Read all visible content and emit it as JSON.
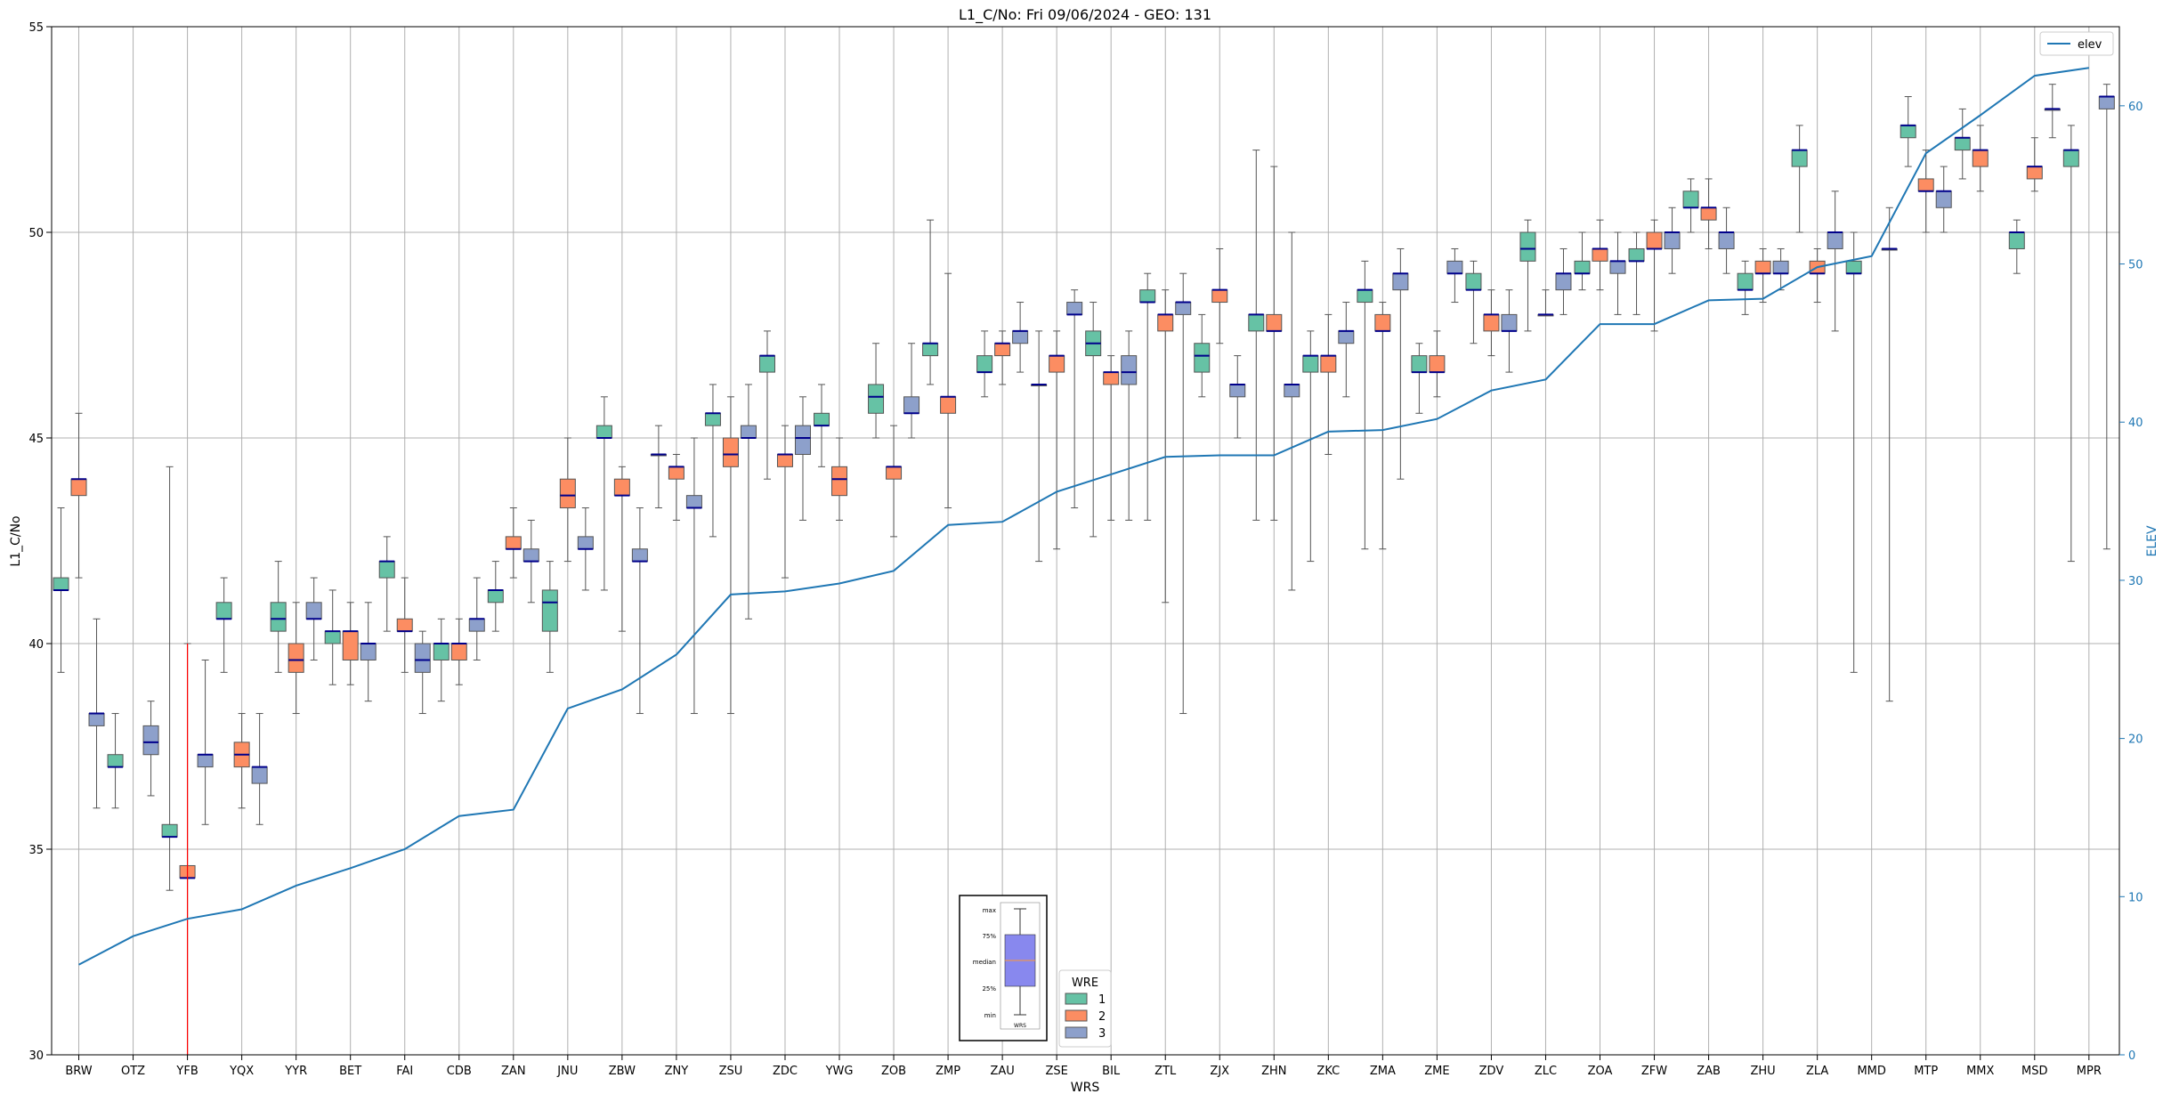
{
  "chart_data": {
    "type": "boxplot",
    "title": "L1_C/No: Fri 09/06/2024 - GEO: 131",
    "xlabel": "WRS",
    "ylabel": "L1_C/No",
    "y2label": "ELEV",
    "ylim": [
      30,
      55
    ],
    "y2lim": [
      0,
      65
    ],
    "yticks": [
      30,
      35,
      40,
      45,
      50,
      55
    ],
    "y2ticks": [
      0,
      10,
      20,
      30,
      40,
      50,
      60
    ],
    "grid": true,
    "categories": [
      "BRW",
      "OTZ",
      "YFB",
      "YQX",
      "YYR",
      "BET",
      "FAI",
      "CDB",
      "ZAN",
      "JNU",
      "ZBW",
      "ZNY",
      "ZSU",
      "ZDC",
      "YWG",
      "ZOB",
      "ZMP",
      "ZAU",
      "ZSE",
      "BIL",
      "ZTL",
      "ZJX",
      "ZHN",
      "ZKC",
      "ZMA",
      "ZME",
      "ZDV",
      "ZLC",
      "ZOA",
      "ZFW",
      "ZAB",
      "ZHU",
      "ZLA",
      "MMD",
      "MTP",
      "MMX",
      "MSD",
      "MPR"
    ],
    "legend": {
      "line": {
        "label": "elev",
        "position": "top-right"
      },
      "boxes": {
        "title": "WRE",
        "entries": [
          "1",
          "2",
          "3"
        ],
        "position": "bottom-center"
      }
    },
    "colors": {
      "wre1": "#66c2a5",
      "wre2": "#fc8d62",
      "wre3": "#8da0cb",
      "median": "#00008b",
      "elev": "#1f77b4",
      "axis2": "#1f77b4",
      "marker": "#ff0000"
    },
    "marker_line": {
      "category": "YFB",
      "from": 30,
      "to": 40
    },
    "elev": [
      5.7,
      7.5,
      8.6,
      9.2,
      10.7,
      11.8,
      13.0,
      15.1,
      15.5,
      21.9,
      23.1,
      25.3,
      29.1,
      29.3,
      29.8,
      30.6,
      33.5,
      33.7,
      35.6,
      36.7,
      37.8,
      37.9,
      37.9,
      39.4,
      39.5,
      40.2,
      42.0,
      42.7,
      46.2,
      46.2,
      47.7,
      47.8,
      49.8,
      50.5,
      57.0,
      59.4,
      61.9,
      62.4
    ],
    "series": [
      {
        "name": "1",
        "boxes": [
          [
            0,
            39.3,
            41.3,
            41.3,
            41.6,
            43.3
          ],
          [
            1,
            36.0,
            37.0,
            37.0,
            37.3,
            38.3
          ],
          [
            2,
            34.0,
            35.3,
            35.3,
            35.6,
            44.3
          ],
          [
            3,
            39.3,
            40.6,
            40.6,
            41.0,
            41.6
          ],
          [
            4,
            39.3,
            40.3,
            40.6,
            41.0,
            42.0
          ],
          [
            5,
            39.0,
            40.0,
            40.3,
            40.3,
            41.3
          ],
          [
            6,
            40.3,
            41.6,
            42.0,
            42.0,
            42.6
          ],
          [
            7,
            38.6,
            39.6,
            40.0,
            40.0,
            40.6
          ],
          [
            8,
            40.3,
            41.0,
            41.3,
            41.3,
            42.0
          ],
          [
            9,
            39.3,
            40.3,
            41.0,
            41.3,
            42.0
          ],
          [
            10,
            41.3,
            45.0,
            45.0,
            45.3,
            46.0
          ],
          [
            11,
            43.3,
            44.6,
            44.6,
            44.6,
            45.3
          ],
          [
            12,
            42.6,
            45.3,
            45.6,
            45.6,
            46.3
          ],
          [
            13,
            44.0,
            46.6,
            47.0,
            47.0,
            47.6
          ],
          [
            14,
            44.3,
            45.3,
            45.3,
            45.6,
            46.3
          ],
          [
            15,
            45.0,
            45.6,
            46.0,
            46.3,
            47.3
          ],
          [
            16,
            46.3,
            47.0,
            47.3,
            47.3,
            50.3
          ],
          [
            17,
            46.0,
            46.6,
            46.6,
            47.0,
            47.6
          ],
          [
            18,
            42.0,
            46.3,
            46.3,
            46.3,
            47.6
          ],
          [
            19,
            42.6,
            47.0,
            47.3,
            47.6,
            48.3
          ],
          [
            20,
            43.0,
            48.3,
            48.3,
            48.6,
            49.0
          ],
          [
            21,
            46.0,
            46.6,
            47.0,
            47.3,
            48.0
          ],
          [
            22,
            43.0,
            47.6,
            48.0,
            48.0,
            52.0
          ],
          [
            23,
            42.0,
            46.6,
            47.0,
            47.0,
            47.6
          ],
          [
            24,
            42.3,
            48.3,
            48.6,
            48.6,
            49.3
          ],
          [
            25,
            45.6,
            46.6,
            46.6,
            47.0,
            47.3
          ],
          [
            26,
            47.3,
            48.6,
            48.6,
            49.0,
            49.3
          ],
          [
            27,
            47.6,
            49.3,
            49.6,
            50.0,
            50.3
          ],
          [
            28,
            48.6,
            49.0,
            49.0,
            49.3,
            50.0
          ],
          [
            29,
            48.0,
            49.3,
            49.3,
            49.6,
            50.0
          ],
          [
            30,
            50.0,
            50.6,
            50.6,
            51.0,
            51.3
          ],
          [
            31,
            48.0,
            48.6,
            48.6,
            49.0,
            49.3
          ],
          [
            32,
            50.0,
            51.6,
            52.0,
            52.0,
            52.6
          ],
          [
            33,
            39.3,
            49.0,
            49.0,
            49.3,
            50.0
          ],
          [
            34,
            51.6,
            52.3,
            52.6,
            52.6,
            53.3
          ],
          [
            35,
            51.3,
            52.0,
            52.3,
            52.3,
            53.0
          ],
          [
            36,
            49.0,
            49.6,
            50.0,
            50.0,
            50.3
          ],
          [
            37,
            42.0,
            51.6,
            52.0,
            52.0,
            52.6
          ]
        ]
      },
      {
        "name": "2",
        "boxes": [
          [
            0,
            41.6,
            43.6,
            44.0,
            44.0,
            45.6
          ],
          [
            2,
            30.0,
            34.3,
            34.3,
            34.6,
            40.0
          ],
          [
            3,
            36.0,
            37.0,
            37.3,
            37.6,
            38.3
          ],
          [
            4,
            38.3,
            39.3,
            39.6,
            40.0,
            41.0
          ],
          [
            5,
            39.0,
            39.6,
            40.3,
            40.3,
            41.0
          ],
          [
            6,
            39.3,
            40.3,
            40.3,
            40.6,
            41.6
          ],
          [
            7,
            39.0,
            39.6,
            40.0,
            40.0,
            40.6
          ],
          [
            8,
            41.6,
            42.3,
            42.3,
            42.6,
            43.3
          ],
          [
            9,
            42.0,
            43.3,
            43.6,
            44.0,
            45.0
          ],
          [
            10,
            40.3,
            43.6,
            43.6,
            44.0,
            44.3
          ],
          [
            11,
            43.0,
            44.0,
            44.3,
            44.3,
            44.6
          ],
          [
            12,
            38.3,
            44.3,
            44.6,
            45.0,
            46.0
          ],
          [
            13,
            41.6,
            44.3,
            44.6,
            44.6,
            45.3
          ],
          [
            14,
            43.0,
            43.6,
            44.0,
            44.3,
            45.0
          ],
          [
            15,
            42.6,
            44.0,
            44.3,
            44.3,
            45.3
          ],
          [
            16,
            43.3,
            45.6,
            46.0,
            46.0,
            49.0
          ],
          [
            17,
            46.3,
            47.0,
            47.3,
            47.3,
            47.6
          ],
          [
            18,
            42.3,
            46.6,
            47.0,
            47.0,
            47.6
          ],
          [
            19,
            43.0,
            46.3,
            46.6,
            46.6,
            47.0
          ],
          [
            20,
            41.0,
            47.6,
            48.0,
            48.0,
            48.6
          ],
          [
            21,
            47.3,
            48.3,
            48.6,
            48.6,
            49.6
          ],
          [
            22,
            43.0,
            47.6,
            47.6,
            48.0,
            51.6
          ],
          [
            23,
            44.6,
            46.6,
            47.0,
            47.0,
            48.0
          ],
          [
            24,
            42.3,
            47.6,
            47.6,
            48.0,
            48.3
          ],
          [
            25,
            46.0,
            46.6,
            46.6,
            47.0,
            47.6
          ],
          [
            26,
            47.0,
            47.6,
            48.0,
            48.0,
            48.6
          ],
          [
            27,
            48.0,
            48.0,
            48.0,
            48.0,
            48.6
          ],
          [
            28,
            48.6,
            49.3,
            49.6,
            49.6,
            50.3
          ],
          [
            29,
            47.6,
            49.6,
            49.6,
            50.0,
            50.3
          ],
          [
            30,
            49.6,
            50.3,
            50.6,
            50.6,
            51.3
          ],
          [
            31,
            48.3,
            49.0,
            49.0,
            49.3,
            49.6
          ],
          [
            32,
            48.3,
            49.0,
            49.0,
            49.3,
            49.6
          ],
          [
            34,
            50.0,
            51.0,
            51.0,
            51.3,
            52.0
          ],
          [
            35,
            51.0,
            51.6,
            52.0,
            52.0,
            52.6
          ],
          [
            36,
            51.0,
            51.3,
            51.6,
            51.6,
            52.3
          ]
        ]
      },
      {
        "name": "3",
        "boxes": [
          [
            0,
            36.0,
            38.0,
            38.3,
            38.3,
            40.6
          ],
          [
            1,
            36.3,
            37.3,
            37.6,
            38.0,
            38.6
          ],
          [
            2,
            35.6,
            37.0,
            37.3,
            37.3,
            39.6
          ],
          [
            3,
            35.6,
            36.6,
            37.0,
            37.0,
            38.3
          ],
          [
            4,
            39.6,
            40.6,
            40.6,
            41.0,
            41.6
          ],
          [
            5,
            38.6,
            39.6,
            40.0,
            40.0,
            41.0
          ],
          [
            6,
            38.3,
            39.3,
            39.6,
            40.0,
            40.3
          ],
          [
            7,
            39.6,
            40.3,
            40.6,
            40.6,
            41.6
          ],
          [
            8,
            41.0,
            42.0,
            42.0,
            42.3,
            43.0
          ],
          [
            9,
            41.3,
            42.3,
            42.3,
            42.6,
            43.3
          ],
          [
            10,
            38.3,
            42.0,
            42.0,
            42.3,
            43.3
          ],
          [
            11,
            38.3,
            43.3,
            43.3,
            43.6,
            45.0
          ],
          [
            12,
            40.6,
            45.0,
            45.0,
            45.3,
            46.3
          ],
          [
            13,
            43.0,
            44.6,
            45.0,
            45.3,
            46.0
          ],
          [
            15,
            45.0,
            45.6,
            45.6,
            46.0,
            47.3
          ],
          [
            17,
            46.6,
            47.3,
            47.6,
            47.6,
            48.3
          ],
          [
            18,
            43.3,
            48.0,
            48.0,
            48.3,
            48.6
          ],
          [
            19,
            43.0,
            46.3,
            46.6,
            47.0,
            47.6
          ],
          [
            20,
            38.3,
            48.0,
            48.3,
            48.3,
            49.0
          ],
          [
            21,
            45.0,
            46.0,
            46.3,
            46.3,
            47.0
          ],
          [
            22,
            41.3,
            46.0,
            46.3,
            46.3,
            50.0
          ],
          [
            23,
            46.0,
            47.3,
            47.6,
            47.6,
            48.3
          ],
          [
            24,
            44.0,
            48.6,
            49.0,
            49.0,
            49.6
          ],
          [
            25,
            48.3,
            49.0,
            49.0,
            49.3,
            49.6
          ],
          [
            26,
            46.6,
            47.6,
            47.6,
            48.0,
            48.6
          ],
          [
            27,
            48.0,
            48.6,
            49.0,
            49.0,
            49.6
          ],
          [
            28,
            48.0,
            49.0,
            49.3,
            49.3,
            50.0
          ],
          [
            29,
            49.0,
            49.6,
            50.0,
            50.0,
            50.6
          ],
          [
            30,
            49.0,
            49.6,
            50.0,
            50.0,
            50.6
          ],
          [
            31,
            48.6,
            49.0,
            49.0,
            49.3,
            49.6
          ],
          [
            32,
            47.6,
            49.6,
            50.0,
            50.0,
            51.0
          ],
          [
            33,
            38.6,
            49.6,
            49.6,
            49.6,
            50.6
          ],
          [
            34,
            50.0,
            50.6,
            51.0,
            51.0,
            51.6
          ],
          [
            36,
            52.3,
            53.0,
            53.0,
            53.0,
            53.6
          ],
          [
            37,
            42.3,
            53.0,
            53.3,
            53.3,
            53.6
          ]
        ]
      }
    ],
    "inset_key": {
      "labels": [
        "max",
        "75%",
        "median",
        "25%",
        "min"
      ],
      "xlabel": "WRS"
    }
  }
}
